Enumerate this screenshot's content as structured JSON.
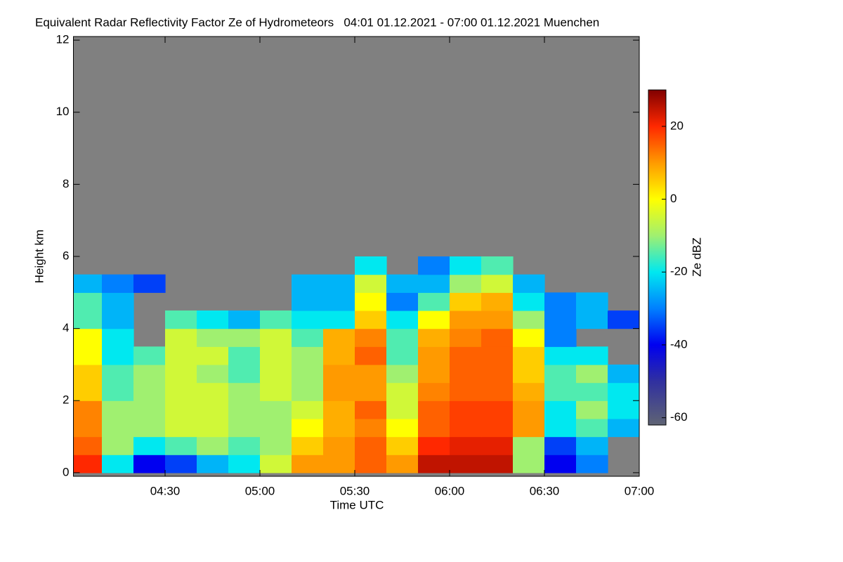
{
  "chart_data": {
    "type": "heatmap",
    "title": "Equivalent Radar Reflectivity Factor Ze of Hydrometeors   04:01 01.12.2021 - 07:00 01.12.2021 Muenchen",
    "xlabel": "Time UTC",
    "ylabel": "Height km",
    "xlim": [
      1,
      180
    ],
    "ylim": [
      -0.1,
      12.1
    ],
    "xticks": [
      {
        "value": 30,
        "label": "04:30"
      },
      {
        "value": 60,
        "label": "05:00"
      },
      {
        "value": 90,
        "label": "05:30"
      },
      {
        "value": 120,
        "label": "06:00"
      },
      {
        "value": 150,
        "label": "06:30"
      },
      {
        "value": 180,
        "label": "07:00"
      }
    ],
    "yticks": [
      0,
      2,
      4,
      6,
      8,
      10,
      12
    ],
    "background_color": "#808080",
    "x_edges": [
      1,
      10,
      20,
      30,
      40,
      50,
      60,
      70,
      80,
      90,
      100,
      110,
      120,
      130,
      140,
      150,
      160,
      170,
      180
    ],
    "y_edges": [
      0,
      0.5,
      1,
      1.5,
      2,
      2.5,
      3,
      3.5,
      4,
      4.5,
      5,
      5.5,
      6
    ],
    "z": [
      [
        20,
        -20,
        -40,
        -35,
        -25,
        -20,
        -5,
        10,
        10,
        15,
        10,
        25,
        25,
        25,
        -10,
        -40,
        -30,
        null
      ],
      [
        15,
        -10,
        -20,
        -15,
        -10,
        -15,
        -10,
        5,
        10,
        15,
        5,
        20,
        22,
        22,
        -10,
        -35,
        -25,
        null
      ],
      [
        12,
        -10,
        -10,
        -5,
        -5,
        -10,
        -10,
        0,
        8,
        12,
        0,
        15,
        18,
        18,
        10,
        -20,
        -15,
        -25
      ],
      [
        12,
        -10,
        -10,
        -5,
        -5,
        -10,
        -10,
        -5,
        8,
        15,
        -5,
        15,
        18,
        18,
        10,
        -20,
        -10,
        -20
      ],
      [
        5,
        -15,
        -10,
        -5,
        -5,
        -10,
        -5,
        -10,
        10,
        10,
        -5,
        12,
        15,
        15,
        8,
        -15,
        -15,
        -20
      ],
      [
        5,
        -15,
        -10,
        -5,
        -10,
        -15,
        -5,
        -10,
        10,
        10,
        -10,
        10,
        15,
        15,
        5,
        -15,
        -10,
        -25
      ],
      [
        0,
        -20,
        -15,
        -5,
        -5,
        -15,
        -5,
        -10,
        8,
        15,
        -15,
        10,
        15,
        15,
        5,
        -20,
        -20,
        null
      ],
      [
        0,
        -20,
        null,
        -5,
        -10,
        -10,
        -5,
        -15,
        8,
        12,
        -15,
        8,
        12,
        15,
        0,
        -30,
        null,
        null
      ],
      [
        -15,
        -25,
        null,
        -15,
        -20,
        -25,
        -15,
        -20,
        -20,
        5,
        -20,
        0,
        10,
        10,
        -10,
        -30,
        -25,
        -35
      ],
      [
        -15,
        -25,
        null,
        null,
        null,
        null,
        null,
        -25,
        -25,
        0,
        -30,
        -15,
        5,
        8,
        -20,
        -30,
        -25,
        null
      ],
      [
        -25,
        -30,
        -35,
        null,
        null,
        null,
        null,
        -25,
        -25,
        -5,
        -25,
        -25,
        -10,
        -5,
        -25,
        null,
        null,
        null
      ],
      [
        null,
        null,
        null,
        null,
        null,
        null,
        null,
        null,
        null,
        -20,
        null,
        -30,
        -20,
        -15,
        null,
        null,
        null,
        null
      ]
    ],
    "colorbar": {
      "label": "Ze dBZ",
      "lim": [
        -62,
        30
      ],
      "ticks": [
        -60,
        -40,
        -20,
        0,
        20
      ],
      "colorscale": [
        [
          -62,
          "#5f6474"
        ],
        [
          -50,
          "#3030a0"
        ],
        [
          -40,
          "#0000f0"
        ],
        [
          -30,
          "#0080ff"
        ],
        [
          -20,
          "#00e8f0"
        ],
        [
          -10,
          "#a0f070"
        ],
        [
          0,
          "#ffff00"
        ],
        [
          10,
          "#ff9a00"
        ],
        [
          20,
          "#ff2800"
        ],
        [
          30,
          "#800000"
        ]
      ]
    }
  }
}
